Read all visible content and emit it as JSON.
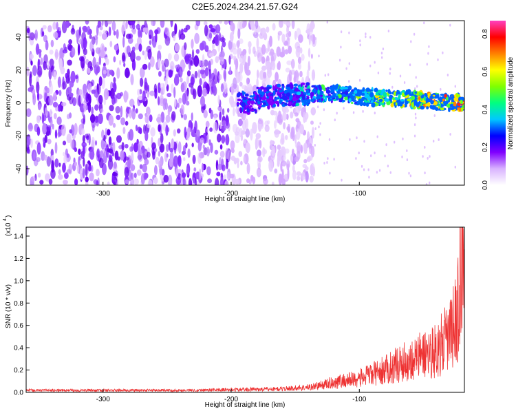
{
  "figure": {
    "title": "C2E5.2024.234.21.57.G24"
  },
  "chart_data": [
    {
      "type": "heatmap",
      "title": "C2E5.2024.234.21.57.G24",
      "xlabel": "Height of straight line (km)",
      "ylabel": "Frequency (Hz)",
      "xlim": [
        -360,
        -18
      ],
      "ylim": [
        -50,
        50
      ],
      "x_ticks": [
        -300,
        -200,
        -100
      ],
      "x_tick_labels": [
        "-300",
        "-200",
        "-100"
      ],
      "y_ticks": [
        -40,
        -20,
        0,
        20,
        40
      ],
      "y_tick_labels": [
        "-40",
        "-20",
        "0",
        "20",
        "40"
      ],
      "colorbar": {
        "label": "Normalized spectral amplitude",
        "range": [
          0.0,
          0.87
        ],
        "ticks": [
          0.0,
          0.2,
          0.4,
          0.6,
          0.8
        ],
        "tick_labels": [
          "0.0",
          "0.2",
          "0.4",
          "0.6",
          "0.8"
        ],
        "colormap": [
          "#ffffff",
          "#d9b3ff",
          "#8000ff",
          "#0000ff",
          "#00c8ff",
          "#00ff80",
          "#80ff00",
          "#ffff00",
          "#ff8000",
          "#ff0000",
          "#ff40c0"
        ]
      },
      "features": {
        "noise_region_x": [
          -360,
          -135
        ],
        "signal_band": [
          {
            "x": -180,
            "f": 3
          },
          {
            "x": -150,
            "f": 5
          },
          {
            "x": -120,
            "f": 6
          },
          {
            "x": -100,
            "f": 4
          },
          {
            "x": -80,
            "f": 3
          },
          {
            "x": -60,
            "f": 2
          },
          {
            "x": -40,
            "f": 1
          },
          {
            "x": -20,
            "f": 0
          }
        ]
      }
    },
    {
      "type": "line",
      "xlabel": "Height of straight line (km)",
      "ylabel": "SNR (10 * v/v)",
      "y_multiplier_label": "(x10",
      "y_multiplier_exp": "4",
      "xlim": [
        -360,
        -18
      ],
      "ylim": [
        0,
        1.48
      ],
      "x_ticks": [
        -300,
        -200,
        -100
      ],
      "x_tick_labels": [
        "-300",
        "-200",
        "-100"
      ],
      "y_ticks": [
        0.0,
        0.2,
        0.4,
        0.6,
        0.8,
        1.0,
        1.2,
        1.4
      ],
      "y_tick_labels": [
        "0.0",
        "0.2",
        "0.4",
        "0.6",
        "0.8",
        "1.0",
        "1.2",
        "1.4"
      ],
      "series": [
        {
          "color": "#ee3333",
          "x": [
            -360,
            -330,
            -300,
            -270,
            -240,
            -210,
            -180,
            -160,
            -140,
            -130,
            -120,
            -110,
            -100,
            -90,
            -80,
            -70,
            -60,
            -50,
            -40,
            -30,
            -25,
            -22,
            -20,
            -18
          ],
          "y": [
            0.02,
            0.02,
            0.02,
            0.02,
            0.02,
            0.025,
            0.03,
            0.035,
            0.05,
            0.07,
            0.1,
            0.12,
            0.14,
            0.18,
            0.22,
            0.28,
            0.32,
            0.38,
            0.42,
            0.55,
            0.7,
            0.9,
            1.47,
            0.9
          ]
        }
      ]
    }
  ]
}
